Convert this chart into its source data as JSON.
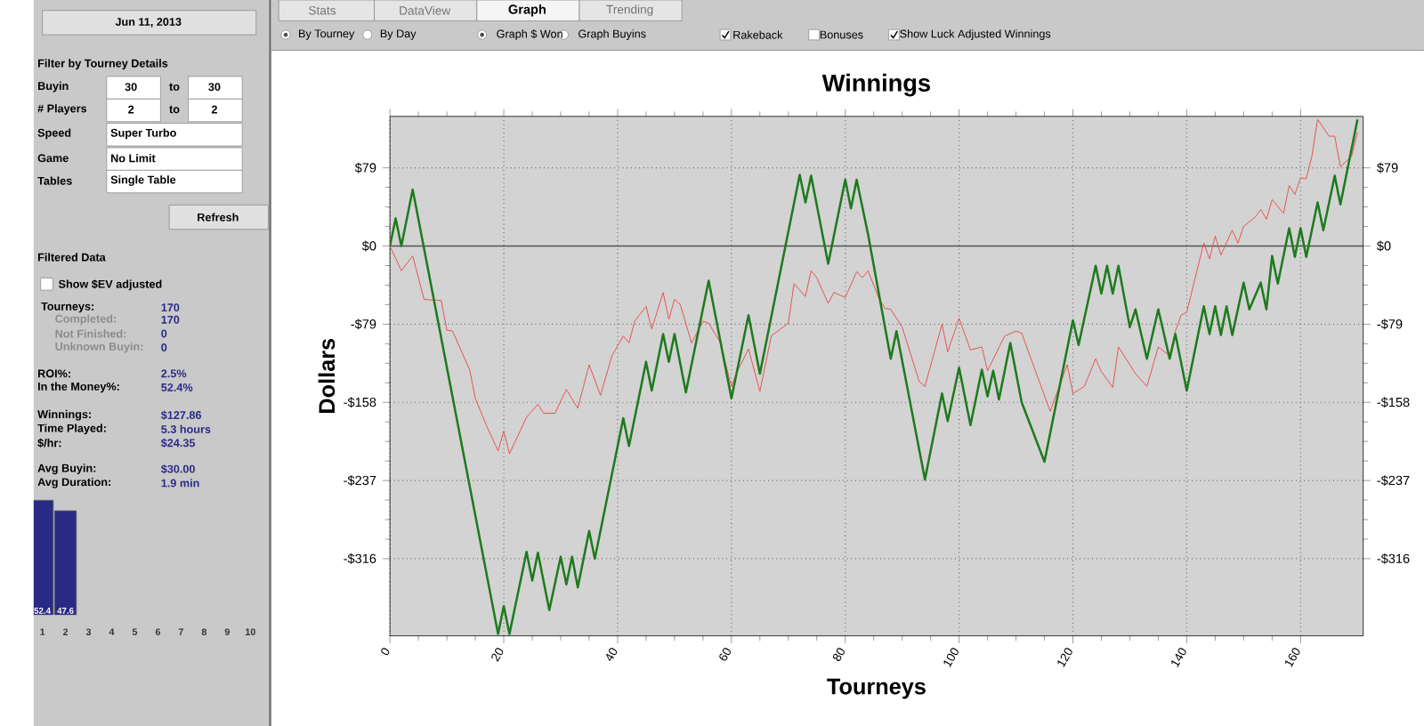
{
  "chart_data": [
    {
      "type": "line",
      "title": "Winnings",
      "xlabel": "Tourneys",
      "ylabel": "Dollars",
      "xlim": [
        0,
        171
      ],
      "xticks": [
        0,
        20,
        40,
        60,
        80,
        100,
        120,
        140,
        160
      ],
      "ylim": [
        -394,
        131
      ],
      "yticks": [
        {
          "value": 79,
          "label": "$79"
        },
        {
          "value": 0,
          "label": "$0"
        },
        {
          "value": -79,
          "label": "-$79"
        },
        {
          "value": -158,
          "label": "-$158"
        },
        {
          "value": -237,
          "label": "-$237"
        },
        {
          "value": -316,
          "label": "-$316"
        }
      ],
      "y2lim": [
        -394,
        131
      ],
      "y2ticks": [
        {
          "value": 79,
          "label": "$79"
        },
        {
          "value": 0,
          "label": "$0"
        },
        {
          "value": -79,
          "label": "-$79"
        },
        {
          "value": -158,
          "label": "-$158"
        },
        {
          "value": -237,
          "label": "-$237"
        },
        {
          "value": -316,
          "label": "-$316"
        }
      ],
      "grid": true,
      "ref_lines": [
        {
          "axis": "y",
          "value": 0,
          "color": "#505050"
        }
      ],
      "series": [
        {
          "color": "#e85050",
          "x": [
            0,
            2,
            4,
            6,
            9,
            10,
            11,
            14,
            15,
            17,
            19,
            20,
            21,
            24,
            26,
            27,
            29,
            31,
            33,
            35,
            37,
            39,
            41,
            42,
            43,
            45,
            46,
            48,
            49,
            50,
            51,
            53,
            55,
            56,
            58,
            60,
            61,
            63,
            65,
            67,
            70,
            71,
            73,
            74,
            75,
            77,
            78,
            80,
            82,
            83,
            84,
            86,
            87,
            88,
            90,
            93,
            94,
            97,
            98,
            100,
            102,
            104,
            105,
            108,
            110,
            111,
            116,
            119,
            120,
            122,
            124,
            125,
            127,
            128,
            131,
            133,
            135,
            137,
            138,
            139,
            140,
            143,
            144,
            145,
            146,
            148,
            149,
            150,
            152,
            153,
            154,
            155,
            157,
            158,
            159,
            160,
            161,
            162,
            163,
            165,
            166,
            167,
            169,
            170
          ],
          "values": [
            0,
            -25,
            -10,
            -54,
            -55,
            -85,
            -86,
            -125,
            -154,
            -182,
            -207,
            -187,
            -210,
            -173,
            -160,
            -169,
            -169,
            -145,
            -164,
            -120,
            -151,
            -111,
            -91,
            -98,
            -76,
            -61,
            -84,
            -47,
            -74,
            -54,
            -59,
            -98,
            -76,
            -78,
            -97,
            -142,
            -127,
            -104,
            -147,
            -91,
            -78,
            -38,
            -51,
            -25,
            -32,
            -58,
            -47,
            -52,
            -26,
            -32,
            -25,
            -54,
            -63,
            -64,
            -82,
            -137,
            -142,
            -79,
            -107,
            -73,
            -105,
            -102,
            -126,
            -91,
            -86,
            -88,
            -167,
            -120,
            -149,
            -142,
            -114,
            -127,
            -143,
            -102,
            -129,
            -142,
            -102,
            -111,
            -86,
            -70,
            -67,
            3,
            -13,
            10,
            -9,
            16,
            3,
            20,
            29,
            37,
            27,
            47,
            33,
            61,
            52,
            69,
            68,
            91,
            128,
            111,
            111,
            80,
            91,
            115
          ]
        },
        {
          "color": "#1e7a1e",
          "x": [
            0,
            1,
            2,
            4,
            19,
            20,
            21,
            24,
            25,
            26,
            28,
            30,
            31,
            32,
            33,
            35,
            36,
            41,
            42,
            45,
            46,
            48,
            49,
            50,
            52,
            56,
            60,
            63,
            65,
            72,
            73,
            74,
            77,
            80,
            81,
            82,
            84,
            88,
            89,
            94,
            97,
            98,
            100,
            102,
            104,
            105,
            106,
            107,
            109,
            111,
            115,
            120,
            121,
            124,
            125,
            126,
            127,
            128,
            130,
            131,
            133,
            135,
            137,
            138,
            140,
            143,
            144,
            145,
            146,
            147,
            148,
            150,
            151,
            153,
            154,
            155,
            156,
            158,
            159,
            160,
            161,
            163,
            164,
            166,
            167,
            170
          ],
          "values": [
            0,
            28,
            0,
            57,
            -392,
            -364,
            -392,
            -309,
            -338,
            -310,
            -368,
            -314,
            -342,
            -314,
            -345,
            -288,
            -316,
            -174,
            -202,
            -117,
            -146,
            -89,
            -117,
            -89,
            -148,
            -35,
            -154,
            -70,
            -129,
            72,
            44,
            71,
            -18,
            67,
            38,
            67,
            12,
            -114,
            -86,
            -236,
            -149,
            -177,
            -123,
            -181,
            -125,
            -152,
            -126,
            -155,
            -98,
            -158,
            -218,
            -75,
            -100,
            -20,
            -48,
            -20,
            -48,
            -20,
            -82,
            -64,
            -114,
            -64,
            -114,
            -89,
            -146,
            -61,
            -89,
            -61,
            -90,
            -61,
            -90,
            -37,
            -64,
            -37,
            -64,
            -10,
            -38,
            18,
            -11,
            18,
            -11,
            44,
            16,
            71,
            42,
            128
          ]
        }
      ]
    },
    {
      "type": "bar",
      "categories": [
        "1",
        "2",
        "3",
        "4",
        "5",
        "6",
        "7",
        "8",
        "9",
        "10"
      ],
      "values": [
        52.4,
        47.6,
        null,
        null,
        null,
        null,
        null,
        null,
        null,
        null
      ],
      "color": "#2a2a86",
      "data_labels": true
    },
    {
      "type": "other",
      "annotations": [
        "Jun 11, 2013",
        "Filter by Tourney Details",
        "Buyin",
        "30",
        "to",
        "30",
        "# Players",
        "2",
        "to",
        "2",
        "Speed",
        "Super Turbo",
        "Game",
        "No Limit",
        "Tables",
        "Single Table",
        "Refresh",
        "Filtered Data",
        "Show $EV adjusted",
        "Tourneys:",
        "170",
        "Completed:",
        "170",
        "Not Finished:",
        "0",
        "Unknown Buyin:",
        "0",
        "ROI%:",
        "2.5%",
        "In the Money%:",
        "52.4%",
        "Winnings:",
        "$127.86",
        "Time Played:",
        "5.3 hours",
        "$/hr:",
        "$24.35",
        "Avg Buyin:",
        "$30.00",
        "Avg Duration:",
        "1.9 min",
        "Stats",
        "DataView",
        "Graph",
        "Trending",
        "By Tourney",
        "By Day",
        "Graph $ Won",
        "Graph Buyins",
        "Rakeback",
        "Bonuses",
        "Show Luck Adjusted Winnings"
      ]
    }
  ]
}
